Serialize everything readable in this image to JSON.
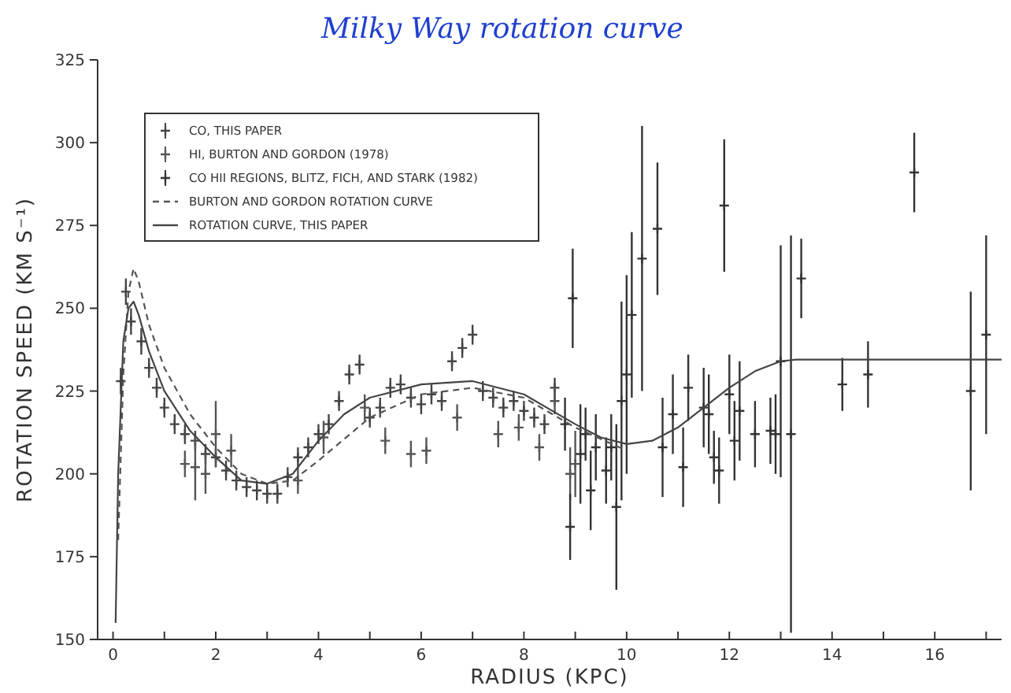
{
  "chart_data": {
    "type": "scatter",
    "title": "Milky Way rotation curve",
    "xlabel": "RADIUS (KPC)",
    "ylabel": "ROTATION SPEED (KM S⁻¹)",
    "xlim": [
      -0.3,
      17.3
    ],
    "xticks": [
      0,
      {
        "value": 1,
        "label": null
      },
      2,
      {
        "value": 3,
        "label": null
      },
      4,
      {
        "value": 5,
        "label": null
      },
      6,
      {
        "value": 7,
        "label": null
      },
      8,
      {
        "value": 9,
        "label": null
      },
      10,
      {
        "value": 11,
        "label": null
      },
      12,
      {
        "value": 13,
        "label": null
      },
      14,
      {
        "value": 15,
        "label": null
      },
      16,
      {
        "value": 17,
        "label": null
      }
    ],
    "ylim": [
      150,
      325
    ],
    "yticks": [
      150,
      175,
      200,
      225,
      250,
      275,
      300,
      325
    ],
    "grid": false,
    "legend": "top left",
    "marker": "cross",
    "series": [
      {
        "name": "CO, THIS PAPER",
        "color": "#444444",
        "x": [
          0.15,
          0.25,
          0.35,
          0.55,
          0.7,
          0.85,
          1.0,
          1.2,
          1.4,
          1.6,
          1.8,
          2.0,
          2.2,
          2.4,
          2.6,
          2.8,
          3.0,
          3.2,
          3.4,
          3.6,
          3.8,
          4.0,
          4.2,
          4.4,
          4.6,
          4.8,
          5.0,
          5.2,
          5.4,
          5.6,
          5.8,
          6.0,
          6.2,
          6.4,
          6.6,
          6.8,
          7.0,
          7.2,
          7.4,
          7.6,
          7.8,
          8.0,
          8.2,
          8.4,
          8.6
        ],
        "values": [
          228,
          255,
          246,
          240,
          232,
          226,
          220,
          215,
          212,
          210,
          206,
          205,
          201,
          198,
          196,
          195,
          194,
          194,
          199,
          205,
          208,
          212,
          215,
          222,
          230,
          233,
          217,
          220,
          226,
          227,
          223,
          221,
          224,
          222,
          234,
          238,
          242,
          225,
          223,
          220,
          222,
          219,
          217,
          215,
          226
        ],
        "errors": [
          4,
          4,
          4,
          4,
          3,
          3,
          3,
          3,
          3,
          3,
          3,
          3,
          3,
          3,
          3,
          3,
          3,
          3,
          3,
          3,
          3,
          3,
          3,
          3,
          3,
          3,
          3,
          3,
          3,
          3,
          3,
          3,
          3,
          3,
          3,
          3,
          3,
          3,
          3,
          3,
          3,
          3,
          3,
          3,
          3
        ]
      },
      {
        "name": "HI, BURTON AND GORDON (1978)",
        "color": "#555555",
        "x": [
          1.4,
          1.6,
          1.8,
          2.0,
          2.3,
          3.6,
          4.1,
          4.9,
          5.3,
          5.8,
          6.1,
          6.7,
          7.5,
          7.9,
          8.3,
          8.6,
          8.9,
          9.0
        ],
        "values": [
          203,
          202,
          200,
          212,
          207,
          198,
          211,
          220,
          210,
          206,
          207,
          217,
          212,
          214,
          208,
          222,
          200,
          203
        ],
        "errors": [
          4,
          10,
          6,
          10,
          5,
          4,
          5,
          4,
          4,
          4,
          4,
          4,
          4,
          4,
          4,
          4,
          8,
          10
        ]
      },
      {
        "name": "CO HII REGIONS, BLITZ, FICH, AND STARK (1982)",
        "color": "#333333",
        "x": [
          8.8,
          8.9,
          8.95,
          9.1,
          9.2,
          9.3,
          9.4,
          9.6,
          9.7,
          9.8,
          9.9,
          10.0,
          10.1,
          10.3,
          10.6,
          10.7,
          10.9,
          11.1,
          11.2,
          11.5,
          11.6,
          11.7,
          11.8,
          11.9,
          12.0,
          12.1,
          12.2,
          12.5,
          12.8,
          12.9,
          13.0,
          13.2,
          13.4,
          14.2,
          14.7,
          15.6,
          16.7,
          17.0
        ],
        "values": [
          215,
          184,
          253,
          206,
          212,
          195,
          208,
          201,
          208,
          190,
          222,
          230,
          248,
          265,
          274,
          208,
          218,
          202,
          226,
          220,
          218,
          205,
          201,
          281,
          224,
          210,
          219,
          212,
          213,
          212,
          234,
          212,
          259,
          227,
          230,
          291,
          225,
          242
        ],
        "errors": [
          8,
          10,
          15,
          15,
          8,
          12,
          10,
          10,
          10,
          25,
          30,
          30,
          25,
          40,
          20,
          15,
          12,
          12,
          10,
          12,
          12,
          8,
          10,
          20,
          12,
          12,
          15,
          10,
          10,
          12,
          35,
          60,
          12,
          8,
          10,
          12,
          30,
          30
        ]
      },
      {
        "name": "BURTON AND GORDON ROTATION CURVE",
        "type": "line",
        "line_style": "dashed",
        "marker": "none",
        "color": "#555555",
        "x": [
          0.1,
          0.2,
          0.3,
          0.4,
          0.5,
          0.7,
          1.0,
          1.5,
          2.0,
          2.5,
          3.0,
          3.5,
          4.0,
          5.0,
          6.0,
          7.0,
          8.0,
          9.0,
          10.0
        ],
        "values": [
          180,
          230,
          255,
          262,
          258,
          245,
          232,
          218,
          208,
          200,
          197,
          198,
          204,
          217,
          224,
          226,
          223,
          214,
          207
        ]
      },
      {
        "name": "ROTATION CURVE, THIS PAPER",
        "type": "line",
        "line_style": "solid",
        "marker": "none",
        "color": "#444444",
        "x": [
          0.05,
          0.1,
          0.2,
          0.3,
          0.4,
          0.5,
          0.7,
          1.0,
          1.5,
          2.0,
          2.5,
          3.0,
          3.5,
          4.0,
          4.5,
          5.0,
          6.0,
          7.0,
          8.0,
          9.0,
          9.5,
          10.0,
          10.5,
          11.0,
          11.5,
          12.0,
          12.5,
          13.0,
          13.3,
          17.3
        ],
        "values": [
          155,
          200,
          240,
          250,
          252,
          248,
          237,
          225,
          213,
          205,
          198,
          197,
          200,
          210,
          218,
          223,
          227,
          228,
          224,
          215,
          211,
          209,
          210,
          214,
          220,
          226,
          231,
          234,
          234.5,
          234.5
        ]
      }
    ]
  }
}
